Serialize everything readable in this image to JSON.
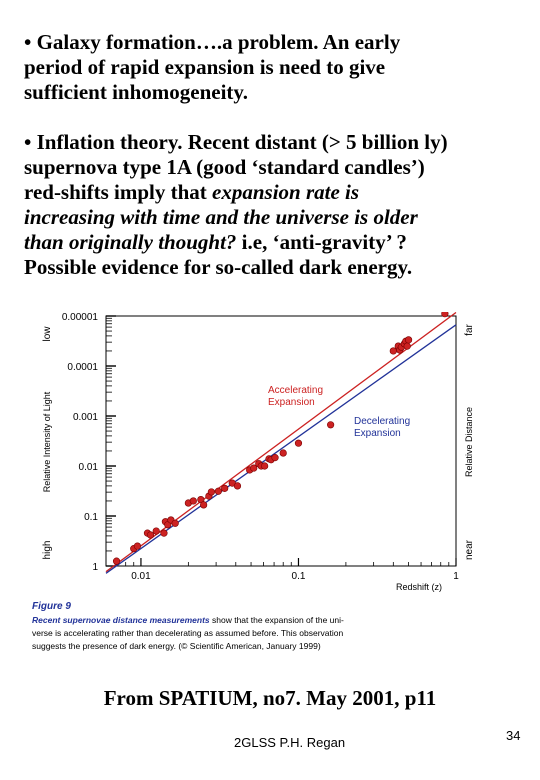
{
  "para1": {
    "line1": "• Galaxy formation….a problem. An early",
    "line2": "period of rapid expansion is need to give",
    "line3": "sufficient inhomogeneity."
  },
  "para2": {
    "line1": "• Inflation theory. Recent distant (> 5 billion ly)",
    "line2": "supernova type 1A (good ‘standard candles’)",
    "line3_plain": "red-shifts imply that ",
    "line3_italic": "expansion rate is",
    "line4_italic": "increasing with time and the universe is older",
    "line5_italic": "than originally thought?",
    "line5_plain": "  i.e, ‘anti-gravity’ ?",
    "line6": "Possible evidence for so-called dark energy."
  },
  "figure": {
    "left_axis": {
      "label": "Relative Intensity of Light",
      "top_word": "low",
      "bottom_word": "high"
    },
    "right_axis": {
      "label": "Relative Distance",
      "top_word": "far",
      "bottom_word": "near"
    },
    "y_ticks": [
      "0.00001",
      "0.0001",
      "0.001",
      "0.01",
      "0.1",
      "1"
    ],
    "x_ticks": [
      "0.01",
      "0.1",
      "1"
    ],
    "x_label": "Redshift (z)",
    "accelerating_label": [
      "Accelerating",
      "Expansion"
    ],
    "decelerating_label": [
      "Decelerating",
      "Expansion"
    ],
    "accent_red": "#cc2222",
    "accent_blue": "#223399",
    "caption_title": "Figure 9",
    "caption_bold": "Recent supernovae distance measurements",
    "caption_line1_rest": " show that the expansion of the uni-",
    "caption_line2": "verse is accelerating rather than decelerating as assumed before. This observation",
    "caption_line3": "suggests the presence of dark energy. (© Scientific American, January 1999)"
  },
  "chart_data": {
    "type": "scatter",
    "xlabel": "Redshift (z)",
    "x_scale": "log",
    "y_scale": "log",
    "xlim": [
      0.006,
      1
    ],
    "ylim": [
      1,
      1e-05
    ],
    "series": [
      {
        "name": "Accelerating Expansion",
        "type": "line",
        "color": "#cc2222",
        "x": [
          0.006,
          1
        ],
        "y": [
          1.3,
          8.5e-06
        ]
      },
      {
        "name": "Decelerating Expansion",
        "type": "line",
        "color": "#223399",
        "x": [
          0.006,
          1
        ],
        "y": [
          1.4,
          1.5e-05
        ]
      },
      {
        "type": "points",
        "color": "#cc2222",
        "x": [
          0.007,
          0.009,
          0.0095,
          0.011,
          0.0115,
          0.0125,
          0.014,
          0.0143,
          0.0148,
          0.0155,
          0.0165,
          0.02,
          0.0215,
          0.024,
          0.025,
          0.027,
          0.028,
          0.031,
          0.034,
          0.038,
          0.041,
          0.049,
          0.052,
          0.056,
          0.058,
          0.061,
          0.065,
          0.067,
          0.071,
          0.08,
          0.1,
          0.16,
          0.4,
          0.43,
          0.44,
          0.45,
          0.47,
          0.48,
          0.49,
          0.5,
          0.85
        ],
        "y": [
          0.8,
          0.45,
          0.4,
          0.22,
          0.24,
          0.2,
          0.22,
          0.13,
          0.15,
          0.12,
          0.14,
          0.055,
          0.05,
          0.047,
          0.06,
          0.04,
          0.033,
          0.032,
          0.028,
          0.022,
          0.025,
          0.012,
          0.011,
          0.009,
          0.01,
          0.01,
          0.0072,
          0.0075,
          0.0068,
          0.0055,
          0.0035,
          0.0015,
          5e-05,
          4e-05,
          4.8e-05,
          4.2e-05,
          3.6e-05,
          3.2e-05,
          4e-05,
          3e-05,
          9e-06
        ]
      }
    ]
  }
}
